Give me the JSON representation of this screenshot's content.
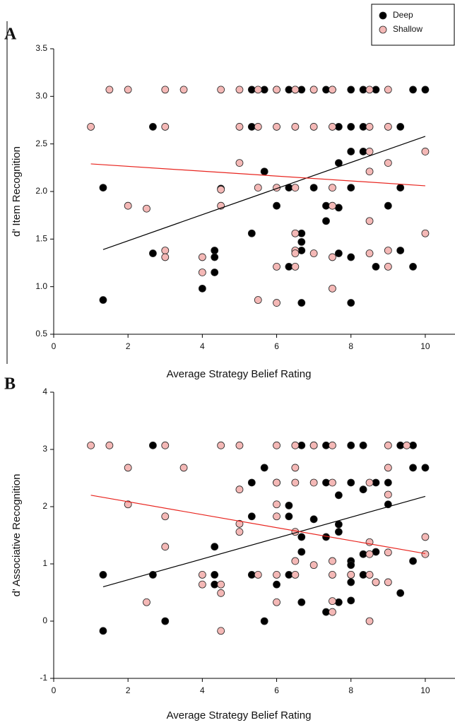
{
  "chart_data": [
    {
      "type": "scatter",
      "label": "A",
      "x_label": "Average Strategy Belief Rating",
      "y_label": "d' Item Recognition",
      "xlim": [
        0,
        10.8
      ],
      "xticks": [
        0,
        2,
        4,
        6,
        8,
        10
      ],
      "ylim": [
        0.5,
        3.5
      ],
      "yticks": [
        0.5,
        {
          "value": 1,
          "label": "1.0"
        },
        1.5,
        {
          "value": 2,
          "label": "2.0"
        },
        2.5,
        {
          "value": 3,
          "label": "3.0"
        },
        3.5
      ],
      "legend": "top-right",
      "series": [
        {
          "name": "Deep",
          "color": "#000000",
          "x": [
            5.33,
            5.67,
            6,
            6.33,
            6.5,
            6.67,
            7,
            7.33,
            7.5,
            8,
            8.33,
            8.67,
            9.67,
            10,
            2.67,
            5.33,
            7.67,
            8,
            8.33,
            9.33,
            8,
            8.33,
            7.67,
            5.67,
            1.33,
            6.33,
            7,
            8,
            9.33,
            4.5,
            6,
            7.33,
            9,
            7.67,
            7.33,
            5.33,
            6.67,
            6.67,
            4.33,
            6.67,
            9.33,
            2.67,
            7.67,
            4.33,
            8,
            6.33,
            8.67,
            9.67,
            4.33,
            4,
            1.33,
            6.67,
            8
          ],
          "values": [
            3.07,
            3.07,
            3.07,
            3.07,
            3.07,
            3.07,
            3.07,
            3.07,
            3.07,
            3.07,
            3.07,
            3.07,
            3.07,
            3.07,
            2.68,
            2.68,
            2.68,
            2.68,
            2.68,
            2.68,
            2.42,
            2.42,
            2.3,
            2.21,
            2.04,
            2.04,
            2.04,
            2.04,
            2.04,
            2.03,
            1.85,
            1.85,
            1.85,
            1.83,
            1.69,
            1.56,
            1.56,
            1.47,
            1.38,
            1.38,
            1.38,
            1.35,
            1.35,
            1.31,
            1.31,
            1.21,
            1.21,
            1.21,
            1.15,
            0.98,
            0.86,
            0.83,
            0.83
          ],
          "fit": {
            "x": [
              1.33,
              10
            ],
            "y": [
              1.39,
              2.58
            ],
            "color": "#000000"
          }
        },
        {
          "name": "Shallow",
          "color": "#f4b8b6",
          "x": [
            1.5,
            2,
            3,
            3.5,
            4.5,
            5,
            5.5,
            6,
            6.5,
            7,
            7.5,
            8.5,
            9,
            1,
            3,
            5,
            5.5,
            6,
            6.5,
            7,
            7.5,
            8.5,
            9,
            8.5,
            10,
            5,
            9,
            8.5,
            5.5,
            6,
            6.5,
            7.5,
            4.5,
            2,
            4.5,
            7.5,
            2.5,
            8.5,
            6.5,
            10,
            3,
            6.5,
            9,
            6.5,
            7,
            8.5,
            3,
            4,
            7.5,
            6,
            6.5,
            9,
            4,
            7.5,
            5.5,
            6
          ],
          "values": [
            3.07,
            3.07,
            3.07,
            3.07,
            3.07,
            3.07,
            3.07,
            3.07,
            3.07,
            3.07,
            3.07,
            3.07,
            3.07,
            2.68,
            2.68,
            2.68,
            2.68,
            2.68,
            2.68,
            2.68,
            2.68,
            2.68,
            2.68,
            2.42,
            2.42,
            2.3,
            2.3,
            2.21,
            2.04,
            2.04,
            2.04,
            2.04,
            2.02,
            1.85,
            1.85,
            1.85,
            1.82,
            1.69,
            1.56,
            1.56,
            1.38,
            1.38,
            1.38,
            1.35,
            1.35,
            1.35,
            1.31,
            1.31,
            1.31,
            1.21,
            1.21,
            1.21,
            1.15,
            0.98,
            0.86,
            0.83
          ],
          "fit": {
            "x": [
              1,
              10
            ],
            "y": [
              2.29,
              2.06
            ],
            "color": "#e8251f"
          }
        }
      ]
    },
    {
      "type": "scatter",
      "label": "B",
      "x_label": "Average Strategy Belief Rating",
      "y_label": "d' Associative Recognition",
      "xlim": [
        0,
        10.8
      ],
      "xticks": [
        0,
        2,
        4,
        6,
        8,
        10
      ],
      "ylim": [
        -1,
        4
      ],
      "yticks": [
        -1,
        0,
        1,
        2,
        3,
        4
      ],
      "series": [
        {
          "name": "Deep",
          "color": "#000000",
          "x": [
            2.67,
            6.67,
            7,
            7.33,
            8,
            8.33,
            9.33,
            9.67,
            5.67,
            9.67,
            10,
            5.33,
            6,
            7.33,
            8,
            8.67,
            9,
            8.33,
            7.67,
            9,
            6.33,
            5.33,
            6.33,
            7,
            7.67,
            7.67,
            6.67,
            7.33,
            4.33,
            6.67,
            8.67,
            8.33,
            8,
            9.67,
            8,
            1.33,
            2.67,
            4.33,
            5.33,
            6.33,
            8,
            8.33,
            8,
            8.67,
            4.33,
            6,
            9.33,
            8,
            6.67,
            7.67,
            7.33,
            3,
            5.67,
            1.33
          ],
          "values": [
            3.07,
            3.07,
            3.07,
            3.07,
            3.07,
            3.07,
            3.07,
            3.07,
            2.68,
            2.68,
            2.68,
            2.42,
            2.42,
            2.42,
            2.42,
            2.42,
            2.42,
            2.3,
            2.2,
            2.04,
            2.02,
            1.83,
            1.83,
            1.78,
            1.69,
            1.56,
            1.47,
            1.47,
            1.3,
            1.21,
            1.21,
            1.17,
            1.05,
            1.05,
            0.98,
            0.81,
            0.81,
            0.81,
            0.81,
            0.81,
            0.81,
            0.81,
            0.68,
            0.68,
            0.64,
            0.64,
            0.49,
            0.36,
            0.33,
            0.33,
            0.16,
            0,
            0,
            -0.17
          ],
          "fit": {
            "x": [
              1.33,
              10
            ],
            "y": [
              0.6,
              2.18
            ],
            "color": "#000000"
          }
        },
        {
          "name": "Shallow",
          "color": "#f4b8b6",
          "x": [
            1,
            1.5,
            3,
            4.5,
            5,
            6,
            6.5,
            7,
            7.5,
            9,
            9.5,
            2,
            3.5,
            6.5,
            9,
            6,
            6.5,
            7,
            7.5,
            8.5,
            5,
            9,
            2,
            6,
            3,
            6,
            5,
            5,
            6.5,
            10,
            8.5,
            3,
            9,
            8.5,
            10,
            6.5,
            7.5,
            7,
            4,
            5.5,
            6,
            6.5,
            7.5,
            8,
            8.5,
            8.67,
            9,
            4,
            4.5,
            4.5,
            7.5,
            2.5,
            6,
            7.5,
            8.5,
            4.5
          ],
          "values": [
            3.07,
            3.07,
            3.07,
            3.07,
            3.07,
            3.07,
            3.07,
            3.07,
            3.07,
            3.07,
            3.07,
            2.68,
            2.68,
            2.68,
            2.68,
            2.42,
            2.42,
            2.42,
            2.42,
            2.42,
            2.3,
            2.21,
            2.04,
            2.04,
            1.83,
            1.83,
            1.7,
            1.56,
            1.56,
            1.47,
            1.38,
            1.3,
            1.2,
            1.17,
            1.17,
            1.05,
            1.05,
            0.98,
            0.81,
            0.81,
            0.81,
            0.81,
            0.81,
            0.81,
            0.81,
            0.68,
            0.68,
            0.64,
            0.64,
            0.49,
            0.35,
            0.33,
            0.33,
            0.16,
            0,
            -0.17
          ],
          "fit": {
            "x": [
              1,
              10
            ],
            "y": [
              2.2,
              1.18
            ],
            "color": "#e8251f"
          }
        }
      ]
    }
  ]
}
